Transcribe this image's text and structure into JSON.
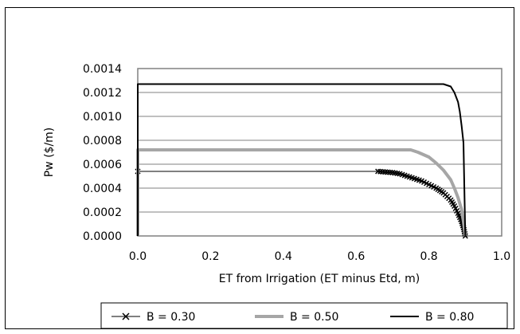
{
  "chart_data": {
    "type": "line",
    "title": "",
    "xlabel": "ET from Irrigation (ET minus Etd, m)",
    "ylabel": "Pw ($/m)",
    "xlim": [
      0.0,
      1.0
    ],
    "ylim": [
      0.0,
      0.0014
    ],
    "x_ticks": [
      "0.0",
      "0.2",
      "0.4",
      "0.6",
      "0.8",
      "1.0"
    ],
    "y_ticks": [
      "0.0000",
      "0.0002",
      "0.0004",
      "0.0006",
      "0.0008",
      "0.0010",
      "0.0012",
      "0.0014"
    ],
    "grid": "horizontal",
    "legend_position": "bottom",
    "series": [
      {
        "name": "B = 0.30",
        "color": "#000000",
        "style": "thin-line-x-markers",
        "points": [
          [
            0.0,
            0.0
          ],
          [
            0.0,
            0.00054
          ],
          [
            0.66,
            0.00054
          ],
          [
            0.68,
            0.000535
          ],
          [
            0.7,
            0.00053
          ],
          [
            0.72,
            0.00052
          ],
          [
            0.74,
            0.0005
          ],
          [
            0.76,
            0.00048
          ],
          [
            0.78,
            0.00046
          ],
          [
            0.8,
            0.00043
          ],
          [
            0.82,
            0.0004
          ],
          [
            0.84,
            0.00036
          ],
          [
            0.86,
            0.0003
          ],
          [
            0.87,
            0.00025
          ],
          [
            0.88,
            0.00019
          ],
          [
            0.89,
            0.00012
          ],
          [
            0.895,
            7e-05
          ],
          [
            0.9,
            0.0
          ]
        ]
      },
      {
        "name": "B = 0.50",
        "color": "#a6a6a6",
        "style": "thick-line",
        "points": [
          [
            0.0,
            0.0
          ],
          [
            0.0,
            0.00072
          ],
          [
            0.75,
            0.00072
          ],
          [
            0.77,
            0.0007
          ],
          [
            0.8,
            0.00066
          ],
          [
            0.82,
            0.00061
          ],
          [
            0.84,
            0.00055
          ],
          [
            0.86,
            0.00047
          ],
          [
            0.87,
            0.0004
          ],
          [
            0.88,
            0.00032
          ],
          [
            0.89,
            0.00022
          ],
          [
            0.895,
            0.00012
          ],
          [
            0.9,
            0.0
          ]
        ]
      },
      {
        "name": "B = 0.80",
        "color": "#000000",
        "style": "medium-line",
        "points": [
          [
            0.0,
            0.0
          ],
          [
            0.0,
            0.00127
          ],
          [
            0.84,
            0.00127
          ],
          [
            0.86,
            0.00125
          ],
          [
            0.87,
            0.0012
          ],
          [
            0.88,
            0.00112
          ],
          [
            0.885,
            0.00104
          ],
          [
            0.89,
            0.00092
          ],
          [
            0.895,
            0.00078
          ],
          [
            0.9,
            0.0
          ]
        ]
      }
    ]
  }
}
